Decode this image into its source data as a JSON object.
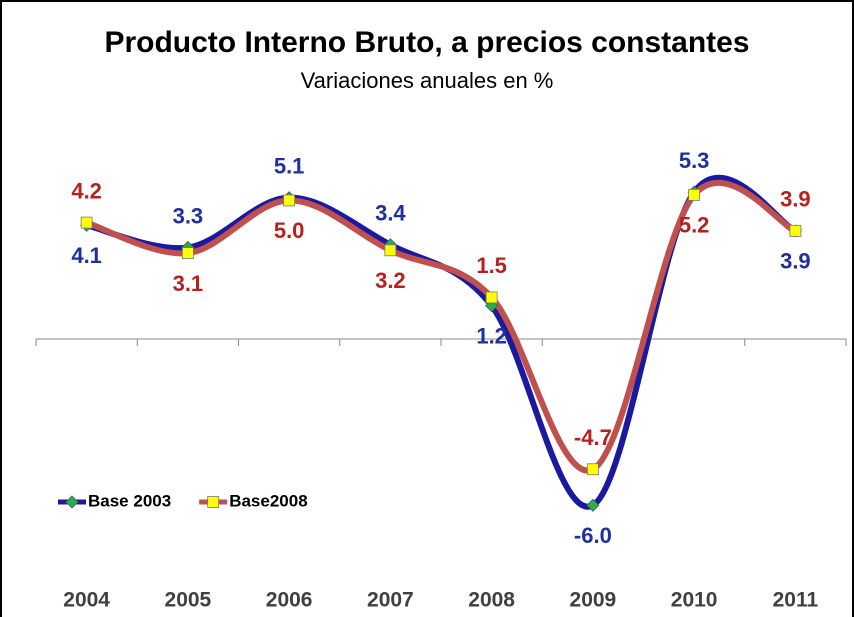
{
  "chart_data": {
    "type": "line",
    "title": "Producto Interno Bruto, a precios constantes",
    "subtitle": "Variaciones anuales en %",
    "categories": [
      "2004",
      "2005",
      "2006",
      "2007",
      "2008",
      "2009",
      "2010",
      "2011"
    ],
    "series": [
      {
        "name": "Base 2003",
        "color": "#1a1aa0",
        "marker_color": "#22b14c",
        "label_color": "#1f2f9f",
        "values": [
          4.1,
          3.3,
          5.1,
          3.4,
          1.2,
          -6.0,
          5.3,
          3.9
        ],
        "value_labels": [
          "4.1",
          "3.3",
          "5.1",
          "3.4",
          "1.2",
          "-6.0",
          "5.3",
          "3.9"
        ]
      },
      {
        "name": "Base2008",
        "color": "#c0504d",
        "marker_color": "#ffff00",
        "label_color": "#b8201e",
        "values": [
          4.2,
          3.1,
          5.0,
          3.2,
          1.5,
          -4.7,
          5.2,
          3.9
        ],
        "value_labels": [
          "4.2",
          "3.1",
          "5.0",
          "3.2",
          "1.5",
          "-4.7",
          "5.2",
          "3.9"
        ]
      }
    ],
    "ylim": [
      -7,
      7
    ],
    "legend": "bottom-left",
    "smooth": true
  }
}
